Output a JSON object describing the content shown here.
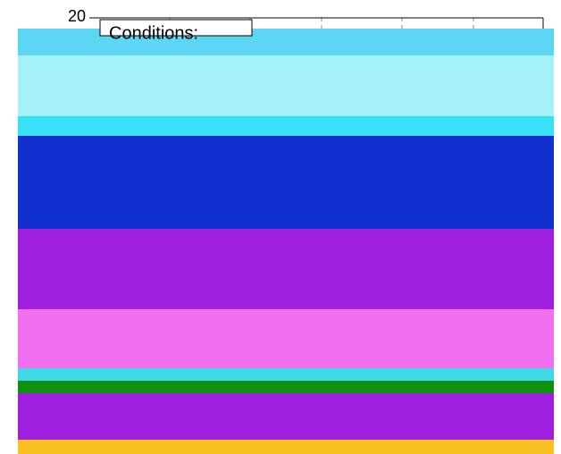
{
  "axis": {
    "tick": "20"
  },
  "annotation": {
    "title": "Conditions:"
  }
}
